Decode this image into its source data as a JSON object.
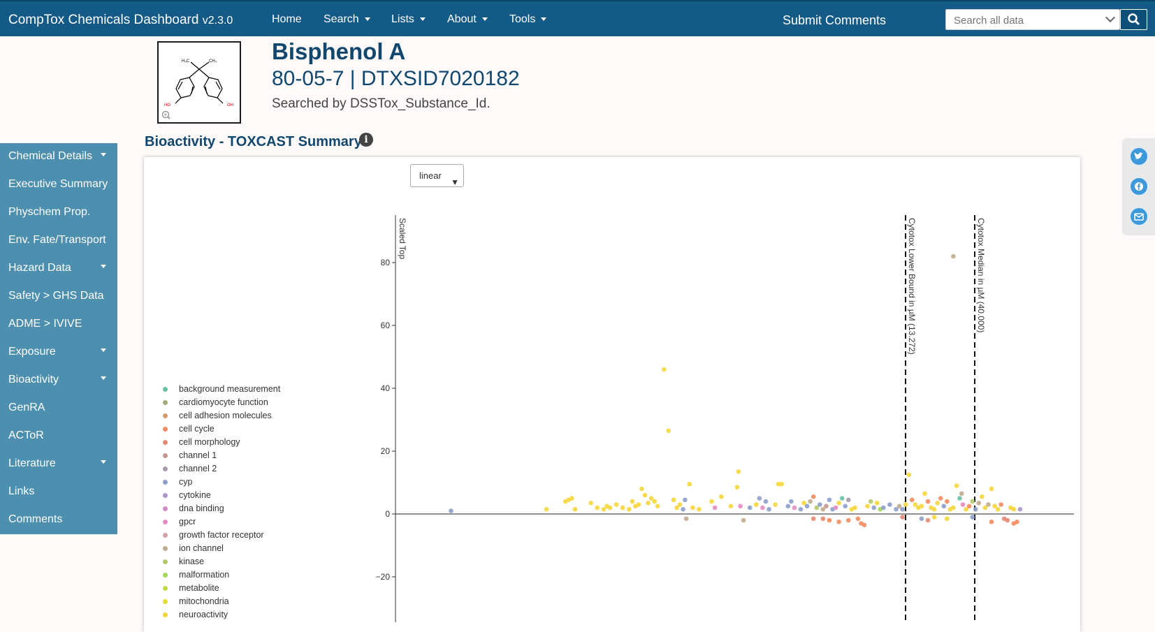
{
  "app": {
    "title": "CompTox Chemicals Dashboard",
    "version": "v2.3.0"
  },
  "nav": {
    "items": [
      "Home",
      "Search",
      "Lists",
      "About",
      "Tools"
    ],
    "submit": "Submit Comments"
  },
  "search": {
    "placeholder": "Search all data"
  },
  "chemical": {
    "name": "Bisphenol A",
    "ids": "80-05-7 | DTXSID7020182",
    "searched_by": "Searched by DSSTox_Substance_Id.",
    "structure_labels": {
      "me1": "H₃C",
      "me2": "CH₃",
      "oh1": "HO",
      "oh2": "OH"
    }
  },
  "section": {
    "title": "Bioactivity - TOXCAST Summary"
  },
  "sidebar": {
    "items": [
      {
        "label": "Chemical Details",
        "dropdown": true
      },
      {
        "label": "Executive Summary",
        "dropdown": false
      },
      {
        "label": "Physchem Prop.",
        "dropdown": false
      },
      {
        "label": "Env. Fate/Transport",
        "dropdown": false
      },
      {
        "label": "Hazard Data",
        "dropdown": true
      },
      {
        "label": "Safety > GHS Data",
        "dropdown": false
      },
      {
        "label": "ADME > IVIVE",
        "dropdown": false
      },
      {
        "label": "Exposure",
        "dropdown": true
      },
      {
        "label": "Bioactivity",
        "dropdown": true
      },
      {
        "label": "GenRA",
        "dropdown": false
      },
      {
        "label": "ACToR",
        "dropdown": false
      },
      {
        "label": "Literature",
        "dropdown": true
      },
      {
        "label": "Links",
        "dropdown": false
      },
      {
        "label": "Comments",
        "dropdown": false
      }
    ]
  },
  "share": [
    "twitter-icon",
    "facebook-icon",
    "email-icon"
  ],
  "scale_select": {
    "value": "linear"
  },
  "chart_data": {
    "type": "scatter",
    "ylabel": "Scaled Top",
    "yticks": [
      80,
      60,
      40,
      20,
      0,
      -20
    ],
    "ylim": [
      -32,
      91
    ],
    "legend": [
      {
        "name": "background measurement",
        "color": "#66c2a5"
      },
      {
        "name": "cardiomyocyte function",
        "color": "#a6a97a"
      },
      {
        "name": "cell adhesion molecules",
        "color": "#d39a6a"
      },
      {
        "name": "cell cycle",
        "color": "#f38c62"
      },
      {
        "name": "cell morphology",
        "color": "#e38a72"
      },
      {
        "name": "channel 1",
        "color": "#c5968f"
      },
      {
        "name": "channel 2",
        "color": "#a79bac"
      },
      {
        "name": "cyp",
        "color": "#8d9fc9"
      },
      {
        "name": "cytokine",
        "color": "#ad96c8"
      },
      {
        "name": "dna binding",
        "color": "#d48ac2"
      },
      {
        "name": "gpcr",
        "color": "#e68ac1"
      },
      {
        "name": "growth factor receptor",
        "color": "#d6a2a8"
      },
      {
        "name": "ion channel",
        "color": "#c1ab8e"
      },
      {
        "name": "kinase",
        "color": "#b4c86b"
      },
      {
        "name": "malformation",
        "color": "#a5d854"
      },
      {
        "name": "metabolite",
        "color": "#c2da40"
      },
      {
        "name": "mitochondria",
        "color": "#e2dc35"
      },
      {
        "name": "neuroactivity",
        "color": "#f6d63a"
      }
    ],
    "vlines": [
      {
        "label": "Cytotox Lower Bound in µM (13.272)"
      },
      {
        "label": "Cytotox Median in µM (40.000)"
      }
    ],
    "points": [
      [
        0.05,
        1,
        "cyp"
      ],
      [
        0.2,
        1.5,
        "neuroactivity"
      ],
      [
        0.23,
        4,
        "neuroactivity"
      ],
      [
        0.235,
        4.5,
        "neuroactivity"
      ],
      [
        0.24,
        5,
        "neuroactivity"
      ],
      [
        0.245,
        1.5,
        "neuroactivity"
      ],
      [
        0.27,
        3.5,
        "neuroactivity"
      ],
      [
        0.28,
        2,
        "neuroactivity"
      ],
      [
        0.29,
        1.5,
        "neuroactivity"
      ],
      [
        0.295,
        2.5,
        "neuroactivity"
      ],
      [
        0.3,
        2,
        "neuroactivity"
      ],
      [
        0.31,
        3,
        "neuroactivity"
      ],
      [
        0.32,
        2,
        "neuroactivity"
      ],
      [
        0.33,
        1.5,
        "neuroactivity"
      ],
      [
        0.335,
        4,
        "neuroactivity"
      ],
      [
        0.34,
        2.5,
        "neuroactivity"
      ],
      [
        0.345,
        3,
        "neuroactivity"
      ],
      [
        0.35,
        8,
        "neuroactivity"
      ],
      [
        0.355,
        6,
        "neuroactivity"
      ],
      [
        0.36,
        3.5,
        "neuroactivity"
      ],
      [
        0.365,
        5,
        "neuroactivity"
      ],
      [
        0.37,
        4,
        "neuroactivity"
      ],
      [
        0.375,
        2.5,
        "neuroactivity"
      ],
      [
        0.385,
        46,
        "neuroactivity"
      ],
      [
        0.392,
        26.5,
        "neuroactivity"
      ],
      [
        0.4,
        4.5,
        "neuroactivity"
      ],
      [
        0.405,
        2,
        "neuroactivity"
      ],
      [
        0.41,
        3,
        "neuroactivity"
      ],
      [
        0.415,
        1.5,
        "cyp"
      ],
      [
        0.418,
        4.5,
        "cyp"
      ],
      [
        0.42,
        -1.5,
        "ion channel"
      ],
      [
        0.425,
        9.5,
        "neuroactivity"
      ],
      [
        0.43,
        2,
        "neuroactivity"
      ],
      [
        0.44,
        1.5,
        "neuroactivity"
      ],
      [
        0.46,
        4,
        "neuroactivity"
      ],
      [
        0.465,
        2,
        "gpcr"
      ],
      [
        0.475,
        5.5,
        "neuroactivity"
      ],
      [
        0.49,
        2.5,
        "neuroactivity"
      ],
      [
        0.5,
        8.5,
        "neuroactivity"
      ],
      [
        0.502,
        13.5,
        "neuroactivity"
      ],
      [
        0.505,
        2.5,
        "gpcr"
      ],
      [
        0.51,
        -2,
        "ion channel"
      ],
      [
        0.52,
        2,
        "cyp"
      ],
      [
        0.53,
        3,
        "neuroactivity"
      ],
      [
        0.535,
        5,
        "cyp"
      ],
      [
        0.54,
        2,
        "gpcr"
      ],
      [
        0.545,
        4,
        "cyp"
      ],
      [
        0.55,
        1.5,
        "cyp"
      ],
      [
        0.56,
        3,
        "neuroactivity"
      ],
      [
        0.565,
        9.5,
        "neuroactivity"
      ],
      [
        0.57,
        9.5,
        "neuroactivity"
      ],
      [
        0.58,
        2.5,
        "cyp"
      ],
      [
        0.585,
        4,
        "cyp"
      ],
      [
        0.59,
        2,
        "gpcr"
      ],
      [
        0.6,
        1.5,
        "cyp"
      ],
      [
        0.605,
        3.5,
        "neuroactivity"
      ],
      [
        0.61,
        2.5,
        "cyp"
      ],
      [
        0.615,
        4,
        "ion channel"
      ],
      [
        0.62,
        5.5,
        "cell cycle"
      ],
      [
        0.625,
        2,
        "kinase"
      ],
      [
        0.63,
        3,
        "cyp"
      ],
      [
        0.635,
        1.5,
        "ion channel"
      ],
      [
        0.64,
        2.5,
        "channel 1"
      ],
      [
        0.645,
        4.5,
        "cyp"
      ],
      [
        0.65,
        1.5,
        "cyp"
      ],
      [
        0.655,
        2,
        "gpcr"
      ],
      [
        0.66,
        3.5,
        "neuroactivity"
      ],
      [
        0.665,
        5,
        "background measurement"
      ],
      [
        0.67,
        2.5,
        "cyp"
      ],
      [
        0.675,
        4.5,
        "channel 2"
      ],
      [
        0.68,
        1.5,
        "neuroactivity"
      ],
      [
        0.685,
        2,
        "neuroactivity"
      ],
      [
        0.62,
        -1.5,
        "cell morphology"
      ],
      [
        0.635,
        -1.5,
        "cell morphology"
      ],
      [
        0.645,
        -2,
        "cell cycle"
      ],
      [
        0.66,
        -2.5,
        "cell cycle"
      ],
      [
        0.675,
        -2,
        "cell cycle"
      ],
      [
        0.69,
        -1.5,
        "cell cycle"
      ],
      [
        0.695,
        -3,
        "cell cycle"
      ],
      [
        0.7,
        -3.5,
        "cell cycle"
      ],
      [
        0.705,
        2.5,
        "neuroactivity"
      ],
      [
        0.71,
        4,
        "kinase"
      ],
      [
        0.715,
        2,
        "cyp"
      ],
      [
        0.72,
        3.5,
        "neuroactivity"
      ],
      [
        0.725,
        1.5,
        "malformation"
      ],
      [
        0.73,
        2,
        "cyp"
      ],
      [
        0.74,
        3,
        "cyp"
      ],
      [
        0.75,
        1.5,
        "cyp"
      ],
      [
        0.755,
        2.5,
        "ion channel"
      ],
      [
        0.76,
        1.5,
        "cyp"
      ],
      [
        0.765,
        3,
        "neuroactivity"
      ],
      [
        0.77,
        12.5,
        "neuroactivity"
      ],
      [
        0.775,
        4.5,
        "cell cycle"
      ],
      [
        0.78,
        3,
        "neuroactivity"
      ],
      [
        0.785,
        2,
        "neuroactivity"
      ],
      [
        0.79,
        2.5,
        "neuroactivity"
      ],
      [
        0.795,
        6.5,
        "neuroactivity"
      ],
      [
        0.8,
        4,
        "cell cycle"
      ],
      [
        0.805,
        2,
        "neuroactivity"
      ],
      [
        0.81,
        1.5,
        "neuroactivity"
      ],
      [
        0.815,
        3.5,
        "neuroactivity"
      ],
      [
        0.82,
        5,
        "cell cycle"
      ],
      [
        0.825,
        2.5,
        "cyp"
      ],
      [
        0.83,
        4,
        "cell cycle"
      ],
      [
        0.835,
        1.5,
        "neuroactivity"
      ],
      [
        0.84,
        2,
        "neuroactivity"
      ],
      [
        0.845,
        9,
        "neuroactivity"
      ],
      [
        0.85,
        5,
        "background measurement"
      ],
      [
        0.853,
        6.5,
        "ion channel"
      ],
      [
        0.855,
        3,
        "gpcr"
      ],
      [
        0.86,
        1.5,
        "neuroactivity"
      ],
      [
        0.865,
        2.5,
        "cell cycle"
      ],
      [
        0.87,
        4,
        "kinase"
      ],
      [
        0.875,
        1.5,
        "cyp"
      ],
      [
        0.88,
        3.5,
        "ion channel"
      ],
      [
        0.885,
        5.5,
        "neuroactivity"
      ],
      [
        0.89,
        2,
        "neuroactivity"
      ],
      [
        0.895,
        3,
        "ion channel"
      ],
      [
        0.9,
        8,
        "neuroactivity"
      ],
      [
        0.905,
        2.5,
        "neuroactivity"
      ],
      [
        0.91,
        1.5,
        "neuroactivity"
      ],
      [
        0.915,
        3,
        "cell cycle"
      ],
      [
        0.92,
        -1.5,
        "cell morphology"
      ],
      [
        0.925,
        -2,
        "cell morphology"
      ],
      [
        0.93,
        2,
        "neuroactivity"
      ],
      [
        0.935,
        1.5,
        "neuroactivity"
      ],
      [
        0.76,
        -1,
        "cell morphology"
      ],
      [
        0.79,
        -1.5,
        "cyp"
      ],
      [
        0.8,
        -2,
        "cell morphology"
      ],
      [
        0.81,
        -1,
        "neuroactivity"
      ],
      [
        0.83,
        -1.5,
        "neuroactivity"
      ],
      [
        0.87,
        -1,
        "cyp"
      ],
      [
        0.9,
        -2.5,
        "cell cycle"
      ],
      [
        0.935,
        -3,
        "cell cycle"
      ],
      [
        0.94,
        -2.5,
        "cell cycle"
      ],
      [
        0.945,
        1.5,
        "cytokine"
      ],
      [
        0.84,
        82,
        "ion channel"
      ]
    ]
  }
}
